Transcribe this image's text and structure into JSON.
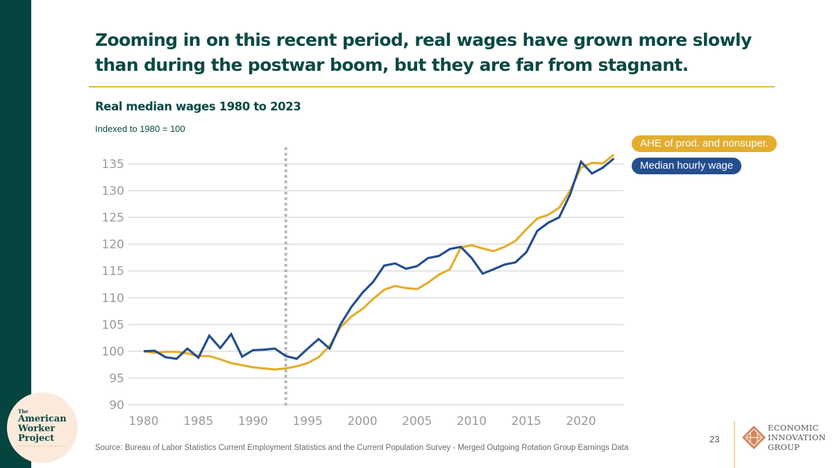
{
  "slide": {
    "title": "Zooming in on this recent period, real wages have grown more slowly than during the postwar boom, but they are far from stagnant.",
    "subtitle": "Real median wages 1980 to 2023",
    "note": "Indexed to 1980 = 100",
    "source": "Source: Bureau of Labor Statistics Current Employment Statistics and the Current Population Survey - Merged Outgoing Rotation Group Earnings Data",
    "page_number": "23",
    "left_logo": {
      "small": "The",
      "line1": "American",
      "line2": "Worker",
      "line3": "Project"
    },
    "right_logo": {
      "line1": "ECONOMIC",
      "line2": "INNOVATION",
      "line3": "GROUP"
    }
  },
  "colors": {
    "brand_dark": "#06443f",
    "accent_gold": "#e6b83a",
    "ahe": "#e3ae2e",
    "median": "#244e8e"
  },
  "chart_data": {
    "type": "line",
    "title": "Real median wages 1980 to 2023",
    "subtitle": "Indexed to 1980 = 100",
    "xlabel": "",
    "ylabel": "",
    "xlim": [
      1980,
      2023
    ],
    "ylim": [
      90,
      135
    ],
    "yticks": [
      90,
      95,
      100,
      105,
      110,
      115,
      120,
      125,
      130,
      135
    ],
    "xticks": [
      1980,
      1985,
      1990,
      1995,
      2000,
      2005,
      2010,
      2015,
      2020
    ],
    "grid": true,
    "legend_position": "right",
    "annotations": [
      {
        "type": "vertical-dotted-line",
        "x": 1993
      }
    ],
    "x": [
      1980,
      1981,
      1982,
      1983,
      1984,
      1985,
      1986,
      1987,
      1988,
      1989,
      1990,
      1991,
      1992,
      1993,
      1994,
      1995,
      1996,
      1997,
      1998,
      1999,
      2000,
      2001,
      2002,
      2003,
      2004,
      2005,
      2006,
      2007,
      2008,
      2009,
      2010,
      2011,
      2012,
      2013,
      2014,
      2015,
      2016,
      2017,
      2018,
      2019,
      2020,
      2021,
      2022,
      2023
    ],
    "series": [
      {
        "name": "AHE of prod. and nonsuper.",
        "color": "#e3ae2e",
        "values": [
          100.0,
          99.7,
          99.9,
          99.9,
          99.6,
          99.1,
          99.1,
          98.5,
          97.8,
          97.4,
          97.0,
          96.8,
          96.6,
          96.8,
          97.2,
          97.8,
          98.9,
          101.0,
          104.5,
          106.5,
          107.9,
          109.8,
          111.5,
          112.2,
          111.8,
          111.6,
          112.8,
          114.3,
          115.3,
          119.4,
          119.8,
          119.2,
          118.7,
          119.5,
          120.6,
          122.8,
          124.8,
          125.5,
          126.8,
          130.0,
          134.3,
          135.2,
          135.1,
          136.7
        ]
      },
      {
        "name": "Median hourly wage",
        "color": "#244e8e",
        "values": [
          100.0,
          100.1,
          98.9,
          98.6,
          100.5,
          98.8,
          102.9,
          100.6,
          103.2,
          99.0,
          100.2,
          100.3,
          100.5,
          99.1,
          98.6,
          100.5,
          102.3,
          100.5,
          105.0,
          108.3,
          110.9,
          113.0,
          116.0,
          116.4,
          115.4,
          115.9,
          117.4,
          117.8,
          119.1,
          119.5,
          117.4,
          114.5,
          115.3,
          116.2,
          116.6,
          118.5,
          122.5,
          124.0,
          125.0,
          129.3,
          135.4,
          133.2,
          134.3,
          136.0
        ]
      }
    ]
  }
}
